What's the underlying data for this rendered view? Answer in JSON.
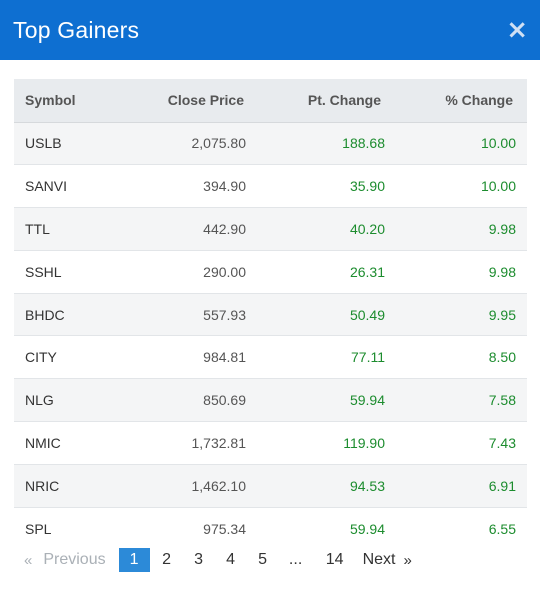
{
  "header": {
    "title": "Top Gainers",
    "close_icon": "×"
  },
  "table": {
    "columns": [
      "Symbol",
      "Close Price",
      "Pt. Change",
      "% Change"
    ],
    "rows": [
      {
        "symbol": "USLB",
        "close": "2,075.80",
        "pt": "188.68",
        "pct": "10.00"
      },
      {
        "symbol": "SANVI",
        "close": "394.90",
        "pt": "35.90",
        "pct": "10.00"
      },
      {
        "symbol": "TTL",
        "close": "442.90",
        "pt": "40.20",
        "pct": "9.98"
      },
      {
        "symbol": "SSHL",
        "close": "290.00",
        "pt": "26.31",
        "pct": "9.98"
      },
      {
        "symbol": "BHDC",
        "close": "557.93",
        "pt": "50.49",
        "pct": "9.95"
      },
      {
        "symbol": "CITY",
        "close": "984.81",
        "pt": "77.11",
        "pct": "8.50"
      },
      {
        "symbol": "NLG",
        "close": "850.69",
        "pt": "59.94",
        "pct": "7.58"
      },
      {
        "symbol": "NMIC",
        "close": "1,732.81",
        "pt": "119.90",
        "pct": "7.43"
      },
      {
        "symbol": "NRIC",
        "close": "1,462.10",
        "pt": "94.53",
        "pct": "6.91"
      },
      {
        "symbol": "SPL",
        "close": "975.34",
        "pt": "59.94",
        "pct": "6.55"
      }
    ]
  },
  "pagination": {
    "prev_arrow": "«",
    "prev_label": "Previous",
    "pages": [
      "1",
      "2",
      "3",
      "4",
      "5"
    ],
    "ellipsis": "...",
    "last_page": "14",
    "next_label": "Next",
    "next_arrow": "»",
    "current": "1"
  },
  "colors": {
    "header_bg": "#0e6fd1",
    "positive": "#1c8c2e",
    "active_page": "#2c8ad8"
  }
}
